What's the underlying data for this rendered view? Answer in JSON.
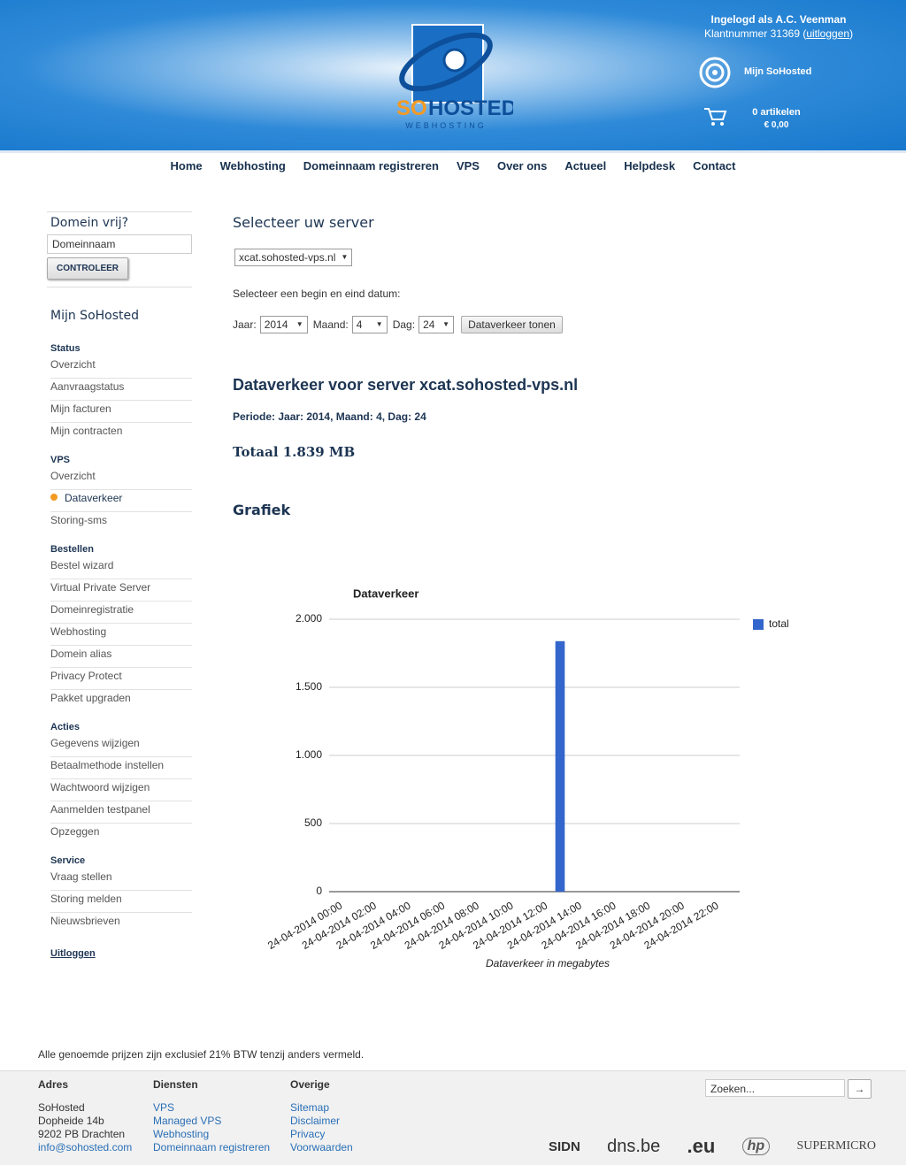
{
  "header": {
    "logged_in": "Ingelogd als A.C. Veenman",
    "customer_number": "Klantnummer 31369 (",
    "logout": "uitloggen",
    "close_paren": ")",
    "logo": {
      "so": "SO",
      "hosted": "HOSTED",
      "tagline": "WEBHOSTING"
    },
    "account_link": "Mijn SoHosted",
    "cart": {
      "items": "0 artikelen",
      "total": "€ 0,00"
    }
  },
  "nav": [
    "Home",
    "Webhosting",
    "Domeinnaam registreren",
    "VPS",
    "Over ons",
    "Actueel",
    "Helpdesk",
    "Contact"
  ],
  "sidebar": {
    "domain_check": {
      "title": "Domein vrij?",
      "placeholder": "Domeinnaam",
      "button": "CONTROLEER"
    },
    "title": "Mijn SoHosted",
    "sections": [
      {
        "title": "Status",
        "items": [
          "Overzicht",
          "Aanvraagstatus",
          "Mijn facturen",
          "Mijn contracten"
        ]
      },
      {
        "title": "VPS",
        "items": [
          "Overzicht",
          "Dataverkeer",
          "Storing-sms"
        ]
      },
      {
        "title": "Bestellen",
        "items": [
          "Bestel wizard",
          "Virtual Private Server",
          "Domeinregistratie",
          "Webhosting",
          "Domein alias",
          "Privacy Protect",
          "Pakket upgraden"
        ]
      },
      {
        "title": "Acties",
        "items": [
          "Gegevens wijzigen",
          "Betaalmethode instellen",
          "Wachtwoord wijzigen",
          "Aanmelden testpanel",
          "Opzeggen"
        ]
      },
      {
        "title": "Service",
        "items": [
          "Vraag stellen",
          "Storing melden",
          "Nieuwsbrieven"
        ]
      }
    ],
    "logout": "Uitloggen"
  },
  "main": {
    "title": "Selecteer uw server",
    "server": "xcat.sohosted-vps.nl",
    "date_prompt": "Selecteer een begin en eind datum:",
    "year_label": "Jaar:",
    "year": "2014",
    "month_label": "Maand:",
    "month": "4",
    "day_label": "Dag:",
    "day": "24",
    "button": "Dataverkeer tonen",
    "heading": "Dataverkeer voor server xcat.sohosted-vps.nl",
    "period": "Periode: Jaar: 2014, Maand: 4, Dag: 24",
    "total": "Totaal 1.839 MB",
    "graph_heading": "Grafiek"
  },
  "chart_data": {
    "type": "bar",
    "title": "Dataverkeer",
    "x_label": "Dataverkeer in megabytes",
    "categories": [
      "24-04-2014 00:00",
      null,
      "24-04-2014 02:00",
      null,
      "24-04-2014 04:00",
      null,
      "24-04-2014 06:00",
      null,
      "24-04-2014 08:00",
      null,
      "24-04-2014 10:00",
      null,
      "24-04-2014 12:00",
      null,
      "24-04-2014 14:00",
      null,
      "24-04-2014 16:00",
      null,
      "24-04-2014 18:00",
      null,
      "24-04-2014 20:00",
      null,
      "24-04-2014 22:00",
      null
    ],
    "series": [
      {
        "name": "total",
        "color": "#3366cc",
        "values": [
          0,
          0,
          0,
          0,
          0,
          0,
          0,
          0,
          0,
          0,
          0,
          0,
          0,
          1839,
          0,
          0,
          0,
          0,
          0,
          0,
          0,
          0,
          0,
          0
        ]
      }
    ],
    "ylim": [
      0,
      2000
    ],
    "yticks": [
      0,
      500,
      {
        "value": 1000,
        "label": "1.000"
      },
      {
        "value": 1500,
        "label": "1.500"
      },
      {
        "value": 2000,
        "label": "2.000"
      }
    ],
    "grid": true,
    "legend": "right"
  },
  "footer": {
    "note": "Alle genoemde prijzen zijn exclusief 21% BTW tenzij anders vermeld.",
    "columns": [
      {
        "title": "Adres",
        "lines": [
          "SoHosted",
          "Dopheide 14b",
          "9202 PB Drachten",
          "info@sohosted.com"
        ]
      },
      {
        "title": "Diensten",
        "lines": [
          "VPS",
          "Managed VPS",
          "Webhosting",
          "Domeinnaam registreren"
        ]
      },
      {
        "title": "Overige",
        "lines": [
          "Sitemap",
          "Disclaimer",
          "Privacy",
          "Voorwaarden"
        ]
      }
    ],
    "search_placeholder": "Zoeken...",
    "search_button": "→",
    "partners": [
      "SIDN",
      "dns.be",
      ".eu",
      "hp",
      "SUPERMICRO"
    ]
  }
}
